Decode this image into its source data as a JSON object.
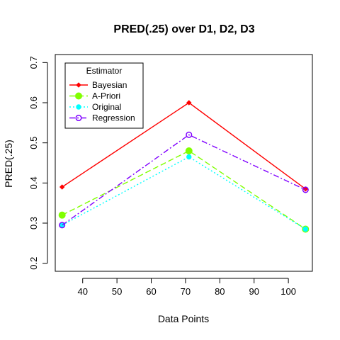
{
  "chart_data": {
    "type": "line",
    "title": "PRED(.25) over D1, D2, D3",
    "xlabel": "Data Points",
    "ylabel": "PRED(.25)",
    "xlim": [
      32,
      107
    ],
    "ylim": [
      0.18,
      0.72
    ],
    "xticks": [
      40,
      50,
      60,
      70,
      80,
      90,
      100
    ],
    "yticks": [
      0.2,
      0.3,
      0.4,
      0.5,
      0.6,
      0.7
    ],
    "x": [
      34,
      71,
      105
    ],
    "legend_title": "Estimator",
    "legend_position": "top-left",
    "series": [
      {
        "name": "Bayesian",
        "values": [
          0.39,
          0.6,
          0.385
        ],
        "color": "#ff0000",
        "dash": "",
        "marker": "diamond-small"
      },
      {
        "name": "A-Priori",
        "values": [
          0.32,
          0.48,
          0.285
        ],
        "color": "#80ff00",
        "dash": "8,4",
        "marker": "circle-filled"
      },
      {
        "name": "Original",
        "values": [
          0.295,
          0.465,
          0.285
        ],
        "color": "#00ffff",
        "dash": "2,3",
        "marker": "circle-filled-small"
      },
      {
        "name": "Regression",
        "values": [
          0.295,
          0.52,
          0.383
        ],
        "color": "#8000ff",
        "dash": "8,3,2,3",
        "marker": "circle-open"
      }
    ]
  }
}
